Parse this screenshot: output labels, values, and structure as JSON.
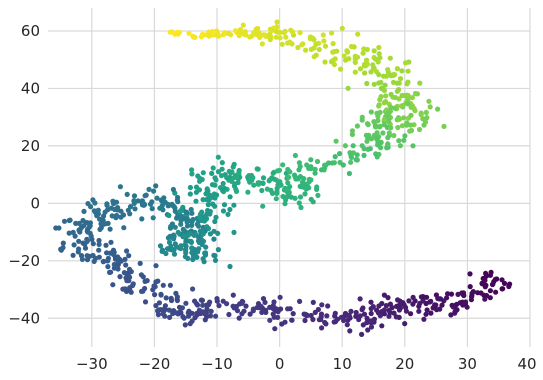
{
  "chart_data": {
    "type": "scatter",
    "title": "",
    "xlabel": "",
    "ylabel": "",
    "xlim": [
      -37,
      40
    ],
    "ylim": [
      -50,
      68
    ],
    "grid": true,
    "colormap": "viridis",
    "color_encoding": "gradient along the path: purple (right-bottom end) to yellow (top end)",
    "x_ticks": [
      -30,
      -20,
      -10,
      0,
      10,
      20,
      30,
      40
    ],
    "y_ticks": [
      -40,
      -20,
      0,
      20,
      40,
      60
    ],
    "x_tick_labels": [
      "−30",
      "−20",
      "−10",
      "0",
      "10",
      "20",
      "30",
      "40"
    ],
    "y_tick_labels": [
      "−40",
      "−20",
      "0",
      "20",
      "40",
      "60"
    ],
    "path": [
      [
        36,
        -25
      ],
      [
        34,
        -28
      ],
      [
        31,
        -31
      ],
      [
        28,
        -34
      ],
      [
        25,
        -35
      ],
      [
        22,
        -34
      ],
      [
        18,
        -36
      ],
      [
        15,
        -38
      ],
      [
        12,
        -41
      ],
      [
        8,
        -40
      ],
      [
        4,
        -38
      ],
      [
        0,
        -38
      ],
      [
        -4,
        -37
      ],
      [
        -8,
        -37
      ],
      [
        -12,
        -36
      ],
      [
        -16,
        -39
      ],
      [
        -19,
        -33
      ],
      [
        -23,
        -26
      ],
      [
        -26,
        -20
      ],
      [
        -30,
        -16
      ],
      [
        -33,
        -11
      ],
      [
        -30,
        -5
      ],
      [
        -26,
        -1
      ],
      [
        -22,
        2
      ],
      [
        -19,
        1
      ],
      [
        -16,
        -4
      ],
      [
        -14,
        -10
      ],
      [
        -16,
        -14
      ],
      [
        -13,
        -18
      ],
      [
        -13,
        -8
      ],
      [
        -12,
        0
      ],
      [
        -11,
        6
      ],
      [
        -10,
        12
      ],
      [
        -7,
        10
      ],
      [
        -4,
        7
      ],
      [
        -1,
        4
      ],
      [
        2,
        2
      ],
      [
        3,
        5
      ],
      [
        2,
        10
      ],
      [
        5,
        13
      ],
      [
        8,
        15
      ],
      [
        12,
        17
      ],
      [
        15,
        19
      ],
      [
        17,
        21
      ],
      [
        14,
        24
      ],
      [
        16,
        28
      ],
      [
        19,
        31
      ],
      [
        22,
        28
      ],
      [
        19,
        35
      ],
      [
        17,
        41
      ],
      [
        18,
        46
      ],
      [
        14,
        48
      ],
      [
        10,
        52
      ],
      [
        6,
        55
      ],
      [
        3,
        58
      ],
      [
        0,
        59
      ],
      [
        -2,
        60
      ],
      [
        -6,
        59
      ],
      [
        -10,
        59
      ],
      [
        -13,
        59
      ],
      [
        -16,
        59
      ]
    ],
    "path_spread": [
      [
        3,
        3
      ],
      [
        3,
        3
      ],
      [
        3,
        2.5
      ],
      [
        3,
        2.5
      ],
      [
        3,
        2.5
      ],
      [
        3,
        2.5
      ],
      [
        3,
        3
      ],
      [
        3,
        3
      ],
      [
        3,
        3
      ],
      [
        3,
        3
      ],
      [
        3,
        3
      ],
      [
        3,
        3
      ],
      [
        3,
        3
      ],
      [
        3,
        3
      ],
      [
        3,
        3
      ],
      [
        3,
        3
      ],
      [
        3,
        3
      ],
      [
        3,
        3
      ],
      [
        3,
        3
      ],
      [
        3,
        3
      ],
      [
        2.5,
        3
      ],
      [
        3,
        3
      ],
      [
        3,
        3
      ],
      [
        3,
        3
      ],
      [
        3,
        3
      ],
      [
        2.5,
        3
      ],
      [
        2.5,
        3
      ],
      [
        2.5,
        2.5
      ],
      [
        2.5,
        2.5
      ],
      [
        2.5,
        3
      ],
      [
        2.5,
        3
      ],
      [
        2.5,
        3
      ],
      [
        3,
        3
      ],
      [
        3,
        3
      ],
      [
        3,
        3
      ],
      [
        3,
        3
      ],
      [
        2.5,
        3
      ],
      [
        2.5,
        3
      ],
      [
        3,
        3
      ],
      [
        3,
        3
      ],
      [
        3,
        3
      ],
      [
        3,
        3
      ],
      [
        3,
        3
      ],
      [
        3,
        3
      ],
      [
        3,
        3
      ],
      [
        3,
        3
      ],
      [
        3,
        3
      ],
      [
        3,
        3
      ],
      [
        3,
        3
      ],
      [
        3,
        3
      ],
      [
        3,
        3
      ],
      [
        3,
        3
      ],
      [
        3,
        3
      ],
      [
        3,
        3
      ],
      [
        3,
        2
      ],
      [
        3,
        2
      ],
      [
        3,
        2
      ],
      [
        2,
        1
      ],
      [
        2,
        1
      ],
      [
        2,
        1
      ],
      [
        2,
        1
      ]
    ],
    "point_count": 1200,
    "random_seed": 7
  }
}
